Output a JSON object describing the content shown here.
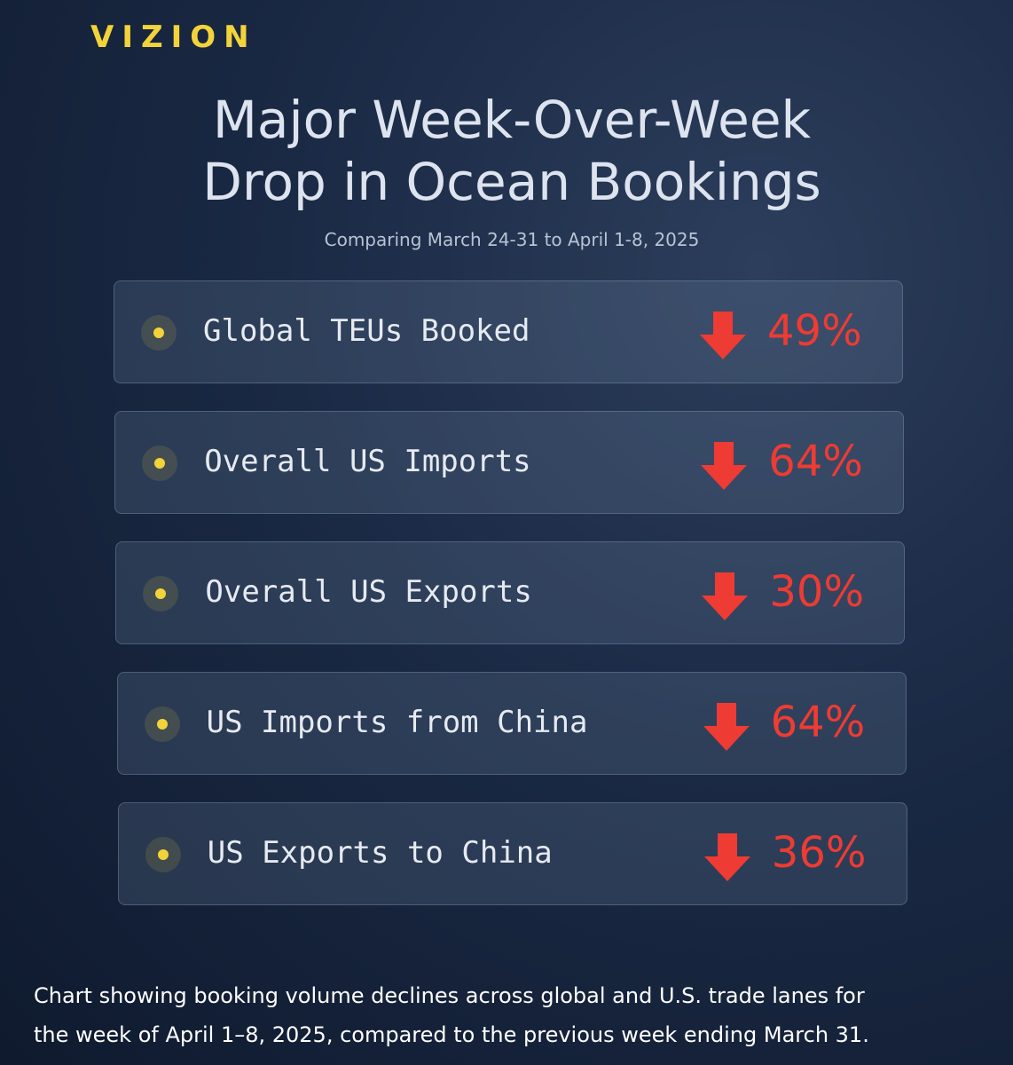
{
  "header": {
    "brand": "VIZION",
    "title": [
      "Major Week-Over-Week",
      "Drop in Ocean Bookings"
    ],
    "subtitle": "Comparing March 24-31 to April 1-8, 2025"
  },
  "items": [
    {
      "label": "Global TEUs Booked",
      "value": "49%"
    },
    {
      "label": "Overall US Imports",
      "value": "64%"
    },
    {
      "label": "Overall US Exports",
      "value": "30%"
    },
    {
      "label": "US Imports from China",
      "value": "64%"
    },
    {
      "label": "US Exports to China",
      "value": "36%"
    }
  ],
  "caption": [
    "Chart showing booking volume declines across global and U.S. trade lanes for",
    "the week of April 1–8, 2025, compared to the previous week ending March 31."
  ]
}
